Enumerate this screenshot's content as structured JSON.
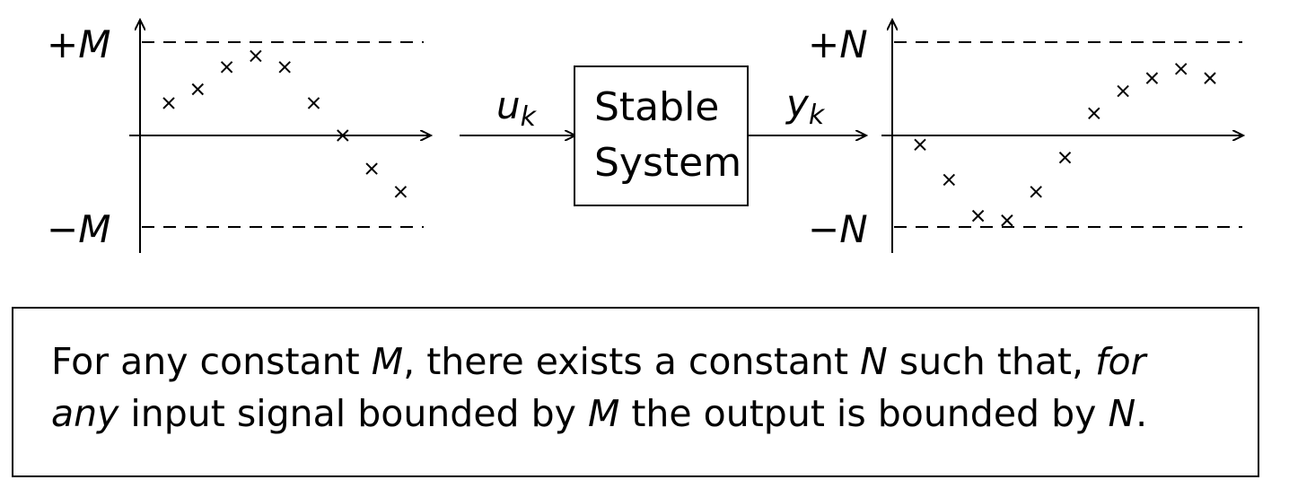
{
  "input_plot": {
    "upper_label": "+M",
    "lower_label": "−M",
    "bound": 1,
    "samples": [
      0.35,
      0.5,
      0.74,
      0.86,
      0.74,
      0.35,
      0.0,
      -0.36,
      -0.61
    ]
  },
  "output_plot": {
    "upper_label": "+N",
    "lower_label": "−N",
    "bound": 1,
    "samples": [
      -0.1,
      -0.48,
      -0.87,
      -0.92,
      -0.61,
      -0.24,
      0.24,
      0.48,
      0.62,
      0.72,
      0.62
    ]
  },
  "block": {
    "input_label": "u",
    "input_subscript": "k",
    "output_label": "y",
    "output_subscript": "k",
    "line1": "Stable",
    "line2": "System"
  },
  "statement": {
    "p1": "For any constant ",
    "v1": "M",
    "p2": ", there exists a constant ",
    "v2": "N",
    "p3": " such that, ",
    "em1": "for",
    "em2": "any",
    "p4": " input signal bounded by ",
    "v3": "M",
    "p5": " the output is bounded by ",
    "v4": "N",
    "p6": "."
  }
}
